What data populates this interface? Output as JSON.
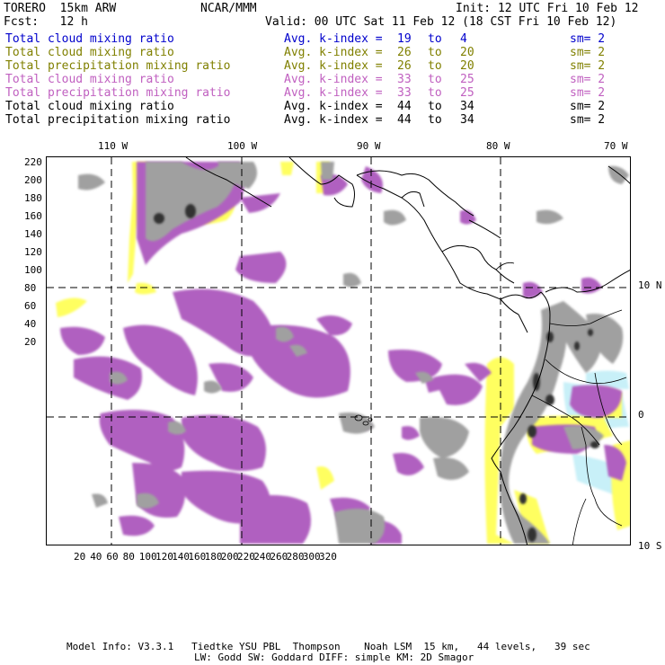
{
  "header": {
    "model": "TORERO  15km ARW",
    "org": "NCAR/MMM",
    "init": "Init: 12 UTC Fri 10 Feb 12",
    "fcst": "Fcst:   12 h",
    "valid": "Valid: 00 UTC Sat 11 Feb 12 (18 CST Fri 10 Feb 12)"
  },
  "legend": [
    {
      "field": "Total cloud mixing ratio",
      "avg": "Avg. k-index =",
      "from": "19",
      "to": "to",
      "to_val": "4",
      "sm": "sm= 2",
      "color": "#0000cc"
    },
    {
      "field": "Total cloud mixing ratio",
      "avg": "Avg. k-index =",
      "from": "26",
      "to": "to",
      "to_val": "20",
      "sm": "sm= 2",
      "color": "#808000"
    },
    {
      "field": "Total precipitation mixing ratio",
      "avg": "Avg. k-index =",
      "from": "26",
      "to": "to",
      "to_val": "20",
      "sm": "sm= 2",
      "color": "#808000"
    },
    {
      "field": "Total cloud mixing ratio",
      "avg": "Avg. k-index =",
      "from": "33",
      "to": "to",
      "to_val": "25",
      "sm": "sm= 2",
      "color": "#c060c0"
    },
    {
      "field": "Total precipitation mixing ratio",
      "avg": "Avg. k-index =",
      "from": "33",
      "to": "to",
      "to_val": "25",
      "sm": "sm= 2",
      "color": "#c060c0"
    },
    {
      "field": "Total cloud mixing ratio",
      "avg": "Avg. k-index =",
      "from": "44",
      "to": "to",
      "to_val": "34",
      "sm": "sm= 2",
      "color": "#000000"
    },
    {
      "field": "Total precipitation mixing ratio",
      "avg": "Avg. k-index =",
      "from": "44",
      "to": "to",
      "to_val": "34",
      "sm": "sm= 2",
      "color": "#000000"
    }
  ],
  "axes": {
    "top_lon_labels": [
      "110 W",
      "100 W",
      "90 W",
      "80 W",
      "70 W"
    ],
    "right_lat_labels": [
      "10 N",
      "0",
      "10 S"
    ],
    "y_ticks": [
      "220",
      "200",
      "180",
      "160",
      "140",
      "120",
      "100",
      "80",
      "60",
      "40",
      "20"
    ],
    "x_ticks": [
      "20",
      "40",
      "60",
      "80",
      "100",
      "120",
      "140",
      "160",
      "180",
      "200",
      "220",
      "240",
      "260",
      "280",
      "300",
      "320"
    ]
  },
  "footer": {
    "line1": "Model Info: V3.3.1   Tiedtke YSU PBL  Thompson    Noah LSM  15 km,   44 levels,   39 sec",
    "line2": "LW: Godd SW: Goddard DIFF: simple KM: 2D Smagor"
  },
  "colors": {
    "gray": "#a0a0a0",
    "dark": "#303030",
    "purple": "#b060c0",
    "yellow": "#ffff60",
    "cyan": "#c8f0f8"
  }
}
